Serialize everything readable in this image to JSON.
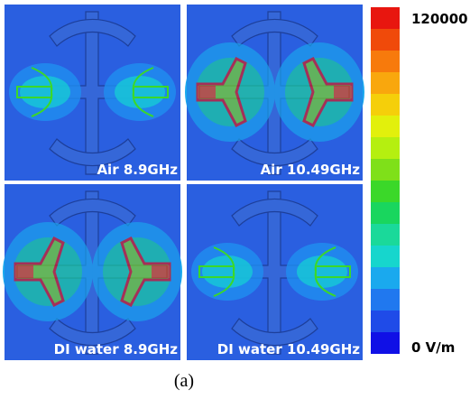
{
  "panels": [
    {
      "label": "Air 8.9GHz"
    },
    {
      "label": "Air 10.49GHz"
    },
    {
      "label": "DI water 8.9GHz"
    },
    {
      "label": "DI water 10.49GHz"
    }
  ],
  "colorbar": {
    "max_label": "120000",
    "min_label": "0 V/m"
  },
  "caption": "(a)"
}
